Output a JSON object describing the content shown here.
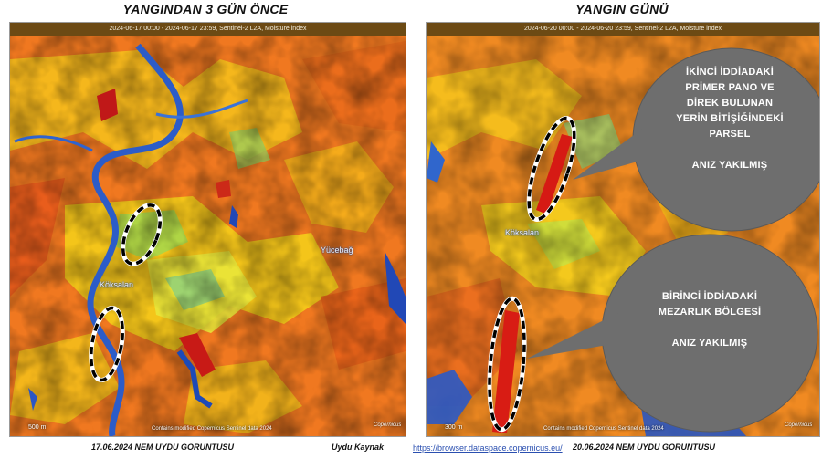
{
  "left_panel": {
    "title": "YANGINDAN 3 GÜN ÖNCE",
    "header": "2024-06-17 00:00 - 2024-06-17 23:59, Sentinel-2 L2A, Moisture index",
    "places": [
      "Köksalan",
      "Yücebağ"
    ],
    "scale": "500 m",
    "attribution": "Contains modified Copernicus Sentinel data 2024",
    "logo_text": "Copernicus"
  },
  "right_panel": {
    "title": "YANGIN GÜNÜ",
    "header": "2024-06-20 00:00 - 2024-06-20 23:59, Sentinel-2 L2A, Moisture index",
    "places": [
      "Köksalan"
    ],
    "scale": "300 m",
    "attribution": "Contains modified Copernicus Sentinel data 2024",
    "logo_text": "Copernicus",
    "callouts": [
      {
        "lines": [
          "İKİNCİ  İDDİADAKİ",
          "PRİMER PANO VE",
          "DİREK BULUNAN",
          "YERİN BİTİŞİĞİNDEKİ",
          "PARSEL",
          "",
          "ANIZ YAKILMIŞ"
        ]
      },
      {
        "lines": [
          "BİRİNCİ  İDDİADAKİ",
          "MEZARLIK BÖLGESİ",
          "",
          "ANIZ YAKILMIŞ"
        ]
      }
    ]
  },
  "footer": {
    "left_caption": "17.06.2024  NEM  UYDU  GÖRÜNTÜSÜ",
    "source_label": "Uydu Kaynak",
    "source_link": "https://browser.dataspace.copernicus.eu/",
    "right_caption": "20.06.2024  NEM  UYDU  GÖRÜNTÜSÜ"
  }
}
